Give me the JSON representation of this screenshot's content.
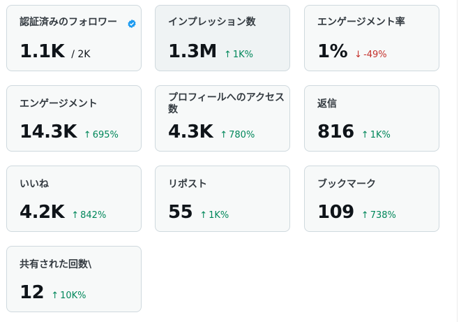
{
  "cards": [
    {
      "label": "認証済みのフォロワー",
      "value": "1.1K",
      "total": "/ 2K",
      "verified_icon": "verified-badge-icon"
    },
    {
      "label": "インプレッション数",
      "value": "1.3M",
      "change": "1K%",
      "direction": "up"
    },
    {
      "label": "エンゲージメント率",
      "value": "1%",
      "change": "-49%",
      "direction": "down"
    },
    {
      "label": "エンゲージメント",
      "value": "14.3K",
      "change": "695%",
      "direction": "up"
    },
    {
      "label": "プロフィールへのアクセス数",
      "value": "4.3K",
      "change": "780%",
      "direction": "up"
    },
    {
      "label": "返信",
      "value": "816",
      "change": "1K%",
      "direction": "up"
    },
    {
      "label": "いいね",
      "value": "4.2K",
      "change": "842%",
      "direction": "up"
    },
    {
      "label": "リポスト",
      "value": "55",
      "change": "1K%",
      "direction": "up"
    },
    {
      "label": "ブックマーク",
      "value": "109",
      "change": "738%",
      "direction": "up"
    },
    {
      "label": "共有された回数\\",
      "value": "12",
      "change": "10K%",
      "direction": "up"
    }
  ],
  "icons": {
    "up": "arrow-up-icon",
    "down": "arrow-down-icon"
  },
  "colors": {
    "up": "#00875a",
    "down": "#c4302b",
    "verified": "#1d9bf0",
    "card_bg": "#f7f9f9",
    "border": "#cfd9de"
  }
}
